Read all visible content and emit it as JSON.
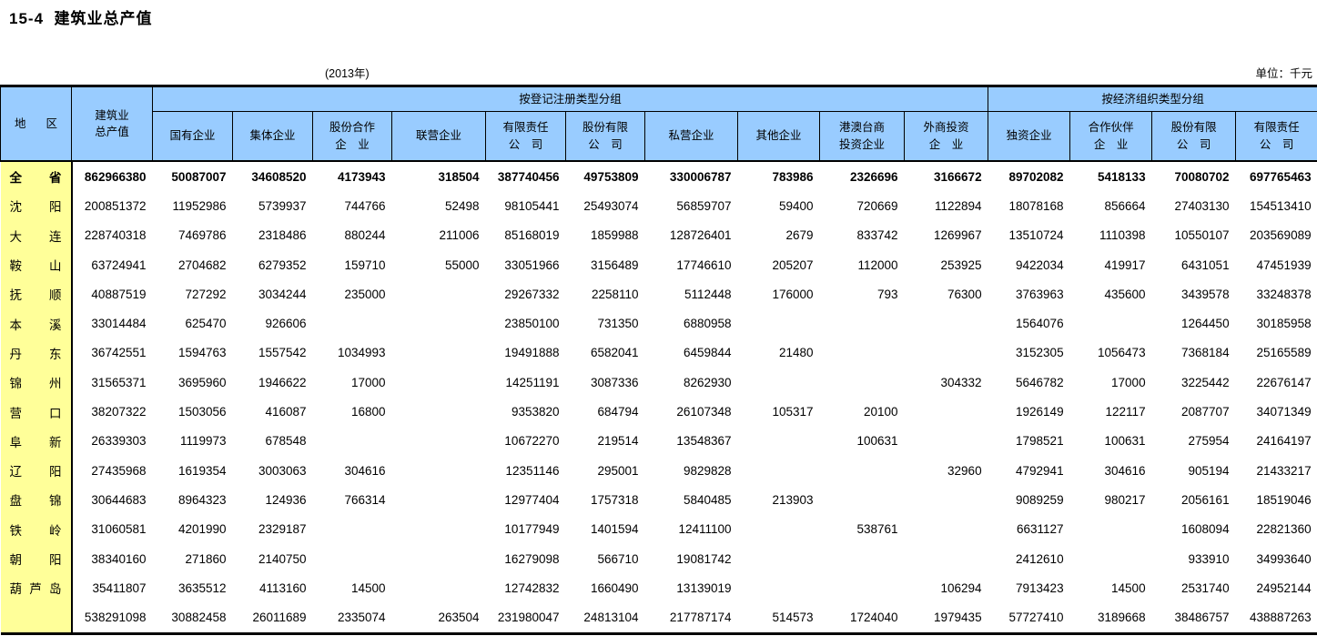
{
  "page": {
    "title": "15-4  建筑业总产值",
    "year_note": "(2013年)",
    "unit_note": "单位：千元"
  },
  "table": {
    "corner": "地 区",
    "total_header": {
      "line1": "建筑业",
      "line2": "总产值"
    },
    "groups": [
      {
        "label": "按登记注册类型分组"
      },
      {
        "label": "按经济组织类型分组"
      }
    ],
    "columns": [
      {
        "line1": "国有企业",
        "line2": ""
      },
      {
        "line1": "集体企业",
        "line2": ""
      },
      {
        "line1": "股份合作",
        "line2": "企　业"
      },
      {
        "line1": "联营企业",
        "line2": ""
      },
      {
        "line1": "有限责任",
        "line2": "公　司"
      },
      {
        "line1": "股份有限",
        "line2": "公　司"
      },
      {
        "line1": "私营企业",
        "line2": ""
      },
      {
        "line1": "其他企业",
        "line2": ""
      },
      {
        "line1": "港澳台商",
        "line2": "投资企业"
      },
      {
        "line1": "外商投资",
        "line2": "企　业"
      },
      {
        "line1": "独资企业",
        "line2": ""
      },
      {
        "line1": "合作伙伴",
        "line2": "企　业"
      },
      {
        "line1": "股份有限",
        "line2": "公　司"
      },
      {
        "line1": "有限责任",
        "line2": "公　司"
      }
    ],
    "rows": [
      {
        "region": "全 省",
        "bold": true,
        "values": [
          "862966380",
          "50087007",
          "34608520",
          "4173943",
          "318504",
          "387740456",
          "49753809",
          "330006787",
          "783986",
          "2326696",
          "3166672",
          "89702082",
          "5418133",
          "70080702",
          "697765463"
        ]
      },
      {
        "region": "沈 阳",
        "bold": false,
        "values": [
          "200851372",
          "11952986",
          "5739937",
          "744766",
          "52498",
          "98105441",
          "25493074",
          "56859707",
          "59400",
          "720669",
          "1122894",
          "18078168",
          "856664",
          "27403130",
          "154513410"
        ]
      },
      {
        "region": "大 连",
        "bold": false,
        "values": [
          "228740318",
          "7469786",
          "2318486",
          "880244",
          "211006",
          "85168019",
          "1859988",
          "128726401",
          "2679",
          "833742",
          "1269967",
          "13510724",
          "1110398",
          "10550107",
          "203569089"
        ]
      },
      {
        "region": "鞍 山",
        "bold": false,
        "values": [
          "63724941",
          "2704682",
          "6279352",
          "159710",
          "55000",
          "33051966",
          "3156489",
          "17746610",
          "205207",
          "112000",
          "253925",
          "9422034",
          "419917",
          "6431051",
          "47451939"
        ]
      },
      {
        "region": "抚 顺",
        "bold": false,
        "values": [
          "40887519",
          "727292",
          "3034244",
          "235000",
          "",
          "29267332",
          "2258110",
          "5112448",
          "176000",
          "793",
          "76300",
          "3763963",
          "435600",
          "3439578",
          "33248378"
        ]
      },
      {
        "region": "本 溪",
        "bold": false,
        "values": [
          "33014484",
          "625470",
          "926606",
          "",
          "",
          "23850100",
          "731350",
          "6880958",
          "",
          "",
          "",
          "1564076",
          "",
          "1264450",
          "30185958"
        ]
      },
      {
        "region": "丹 东",
        "bold": false,
        "values": [
          "36742551",
          "1594763",
          "1557542",
          "1034993",
          "",
          "19491888",
          "6582041",
          "6459844",
          "21480",
          "",
          "",
          "3152305",
          "1056473",
          "7368184",
          "25165589"
        ]
      },
      {
        "region": "锦 州",
        "bold": false,
        "values": [
          "31565371",
          "3695960",
          "1946622",
          "17000",
          "",
          "14251191",
          "3087336",
          "8262930",
          "",
          "",
          "304332",
          "5646782",
          "17000",
          "3225442",
          "22676147"
        ]
      },
      {
        "region": "营 口",
        "bold": false,
        "values": [
          "38207322",
          "1503056",
          "416087",
          "16800",
          "",
          "9353820",
          "684794",
          "26107348",
          "105317",
          "20100",
          "",
          "1926149",
          "122117",
          "2087707",
          "34071349"
        ]
      },
      {
        "region": "阜 新",
        "bold": false,
        "values": [
          "26339303",
          "1119973",
          "678548",
          "",
          "",
          "10672270",
          "219514",
          "13548367",
          "",
          "100631",
          "",
          "1798521",
          "100631",
          "275954",
          "24164197"
        ]
      },
      {
        "region": "辽 阳",
        "bold": false,
        "values": [
          "27435968",
          "1619354",
          "3003063",
          "304616",
          "",
          "12351146",
          "295001",
          "9829828",
          "",
          "",
          "32960",
          "4792941",
          "304616",
          "905194",
          "21433217"
        ]
      },
      {
        "region": "盘 锦",
        "bold": false,
        "values": [
          "30644683",
          "8964323",
          "124936",
          "766314",
          "",
          "12977404",
          "1757318",
          "5840485",
          "213903",
          "",
          "",
          "9089259",
          "980217",
          "2056161",
          "18519046"
        ]
      },
      {
        "region": "铁 岭",
        "bold": false,
        "values": [
          "31060581",
          "4201990",
          "2329187",
          "",
          "",
          "10177949",
          "1401594",
          "12411100",
          "",
          "538761",
          "",
          "6631127",
          "",
          "1608094",
          "22821360"
        ]
      },
      {
        "region": "朝 阳",
        "bold": false,
        "values": [
          "38340160",
          "271860",
          "2140750",
          "",
          "",
          "16279098",
          "566710",
          "19081742",
          "",
          "",
          "",
          "2412610",
          "",
          "933910",
          "34993640"
        ]
      },
      {
        "region": "葫 芦 岛",
        "bold": false,
        "values": [
          "35411807",
          "3635512",
          "4113160",
          "14500",
          "",
          "12742832",
          "1660490",
          "13139019",
          "",
          "",
          "106294",
          "7913423",
          "14500",
          "2531740",
          "24952144"
        ]
      },
      {
        "region": "",
        "bold": false,
        "values": [
          "538291098",
          "30882458",
          "26011689",
          "2335074",
          "263504",
          "231980047",
          "24813104",
          "217787174",
          "514573",
          "1724040",
          "1979435",
          "57727410",
          "3189668",
          "38486757",
          "438887263"
        ]
      }
    ]
  }
}
